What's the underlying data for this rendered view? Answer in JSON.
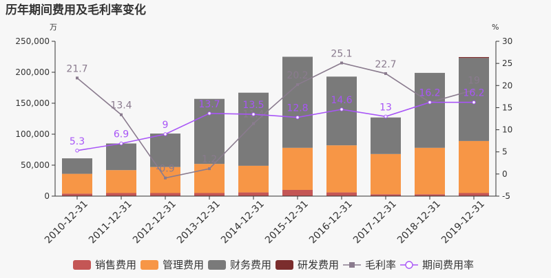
{
  "chart_data": {
    "type": "bar",
    "title": "历年期间费用及毛利率变化",
    "ylabel_left": "万",
    "ylabel_right": "%",
    "ylim_left": [
      0,
      250000
    ],
    "ylim_right": [
      -5,
      30
    ],
    "left_ticks": [
      "0",
      "50,000",
      "100,000",
      "150,000",
      "200,000",
      "250,000"
    ],
    "right_ticks": [
      "-5",
      "0",
      "5",
      "10",
      "15",
      "20",
      "25",
      "30"
    ],
    "categories": [
      "2010-12-31",
      "2011-12-31",
      "2012-12-31",
      "2013-12-31",
      "2014-12-31",
      "2015-12-31",
      "2016-12-31",
      "2017-12-31",
      "2018-12-31",
      "2019-12-31"
    ],
    "series": [
      {
        "name": "销售费用",
        "type": "bar",
        "color": "#c45655",
        "values": [
          4000,
          5000,
          5000,
          5000,
          6000,
          10000,
          6000,
          3000,
          3000,
          5000
        ]
      },
      {
        "name": "管理费用",
        "type": "bar",
        "color": "#f79646",
        "values": [
          32000,
          37000,
          42000,
          47000,
          43000,
          68000,
          76000,
          65000,
          75000,
          84000
        ]
      },
      {
        "name": "财务费用",
        "type": "bar",
        "color": "#7a7a7a",
        "values": [
          25000,
          43000,
          54000,
          105000,
          118000,
          147000,
          111000,
          59000,
          121000,
          134000
        ]
      },
      {
        "name": "研发费用",
        "type": "bar",
        "color": "#7b2d2d",
        "values": [
          0,
          0,
          0,
          0,
          0,
          0,
          0,
          0,
          0,
          1500
        ]
      },
      {
        "name": "毛利率",
        "type": "line",
        "axis": "right",
        "color": "#8a7b8e",
        "values": [
          21.7,
          13.4,
          -0.9,
          1.2,
          11.4,
          20.2,
          25.1,
          22.7,
          16.2,
          19
        ],
        "labels": [
          "21.7",
          "13.4",
          "-0.9",
          "1.2",
          "11.4",
          "20.2",
          "25.1",
          "22.7",
          "16.2",
          "19"
        ]
      },
      {
        "name": "期间费用率",
        "type": "line",
        "axis": "right",
        "color": "#a855f7",
        "values": [
          5.3,
          6.9,
          9,
          13.7,
          13.5,
          12.8,
          14.6,
          13,
          16.2,
          16.2
        ],
        "labels": [
          "5.3",
          "6.9",
          "9",
          "13.7",
          "13.5",
          "12.8",
          "14.6",
          "13",
          "16.2",
          "16.2"
        ]
      }
    ],
    "legend_position": "bottom"
  }
}
